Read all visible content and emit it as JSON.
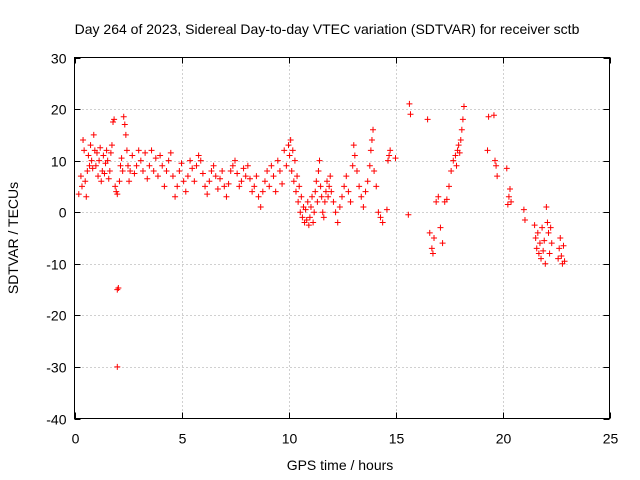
{
  "chart_data": {
    "type": "scatter",
    "title": "Day 264 of 2023, Sidereal Day-to-day VTEC variation (SDTVAR) for receiver sctb",
    "xlabel": "GPS time / hours",
    "ylabel": "SDTVAR / TECUs",
    "xlim": [
      0,
      25
    ],
    "ylim": [
      -40,
      30
    ],
    "xticks": [
      0,
      5,
      10,
      15,
      20,
      25
    ],
    "yticks": [
      -40,
      -30,
      -20,
      -10,
      0,
      10,
      20,
      30
    ],
    "xtick_labels": [
      "0",
      "5",
      "10",
      "15",
      "20",
      "25"
    ],
    "ytick_labels": [
      "-40",
      "-30",
      "-20",
      "-10",
      "0",
      "10",
      "20",
      "30"
    ],
    "grid": true,
    "marker": "plus",
    "color": "#ff0000",
    "series": [
      {
        "name": "sctb",
        "x": [
          0.2,
          0.3,
          0.35,
          0.4,
          0.45,
          0.5,
          0.55,
          0.6,
          0.65,
          0.7,
          0.75,
          0.8,
          0.85,
          0.9,
          0.95,
          1.0,
          1.05,
          1.1,
          1.15,
          1.2,
          1.25,
          1.3,
          1.35,
          1.4,
          1.45,
          1.5,
          1.55,
          1.6,
          1.65,
          1.7,
          1.75,
          1.8,
          1.85,
          1.9,
          1.95,
          2.0,
          2.0,
          2.05,
          2.0,
          2.1,
          2.15,
          2.2,
          2.25,
          2.3,
          2.35,
          2.4,
          2.45,
          2.5,
          2.55,
          2.6,
          2.7,
          2.8,
          2.9,
          3.0,
          3.1,
          3.2,
          3.3,
          3.4,
          3.5,
          3.6,
          3.7,
          3.8,
          3.9,
          4.0,
          4.1,
          4.2,
          4.3,
          4.4,
          4.5,
          4.6,
          4.7,
          4.8,
          4.9,
          5.0,
          5.1,
          5.2,
          5.3,
          5.4,
          5.5,
          5.6,
          5.7,
          5.8,
          5.9,
          6.0,
          6.1,
          6.2,
          6.3,
          6.4,
          6.5,
          6.6,
          6.7,
          6.8,
          6.9,
          7.0,
          7.1,
          7.2,
          7.3,
          7.4,
          7.5,
          7.6,
          7.7,
          7.8,
          7.9,
          8.0,
          8.1,
          8.2,
          8.3,
          8.4,
          8.5,
          8.6,
          8.7,
          8.8,
          8.9,
          9.0,
          9.1,
          9.2,
          9.3,
          9.4,
          9.5,
          9.6,
          9.7,
          9.8,
          9.9,
          10.0,
          10.05,
          10.1,
          10.15,
          10.2,
          10.25,
          10.3,
          10.35,
          10.4,
          10.45,
          10.5,
          10.55,
          10.6,
          10.65,
          10.7,
          10.75,
          10.8,
          10.85,
          10.9,
          10.95,
          11.0,
          11.05,
          11.1,
          11.15,
          11.2,
          11.25,
          11.3,
          11.35,
          11.4,
          11.45,
          11.5,
          11.55,
          11.6,
          11.65,
          11.7,
          11.75,
          11.8,
          11.85,
          11.9,
          11.95,
          12.0,
          12.1,
          12.2,
          12.3,
          12.4,
          12.5,
          12.6,
          12.7,
          12.8,
          12.9,
          13.0,
          13.05,
          13.1,
          13.2,
          13.3,
          13.4,
          13.5,
          13.6,
          13.7,
          13.8,
          13.85,
          13.9,
          13.95,
          14.0,
          14.1,
          14.2,
          14.3,
          14.4,
          14.6,
          14.65,
          14.7,
          14.75,
          15.0,
          15.6,
          15.65,
          15.7,
          16.5,
          16.6,
          16.7,
          16.75,
          16.8,
          16.9,
          17.0,
          17.1,
          17.2,
          17.3,
          17.4,
          17.5,
          17.6,
          17.7,
          17.8,
          17.85,
          17.9,
          17.95,
          18.0,
          18.05,
          18.1,
          18.15,
          18.2,
          19.3,
          19.35,
          19.6,
          19.65,
          19.7,
          19.75,
          20.2,
          20.25,
          20.3,
          20.35,
          20.4,
          21.0,
          21.05,
          21.5,
          21.55,
          21.6,
          21.65,
          21.7,
          21.75,
          21.8,
          21.85,
          21.9,
          21.95,
          22.0,
          22.05,
          22.1,
          22.15,
          22.2,
          22.25,
          22.3,
          22.6,
          22.65,
          22.7,
          22.75,
          22.8,
          22.85,
          22.9
        ],
        "y": [
          3.5,
          7.0,
          5.0,
          14.0,
          12.0,
          6.0,
          3.0,
          8.0,
          11.0,
          9.0,
          13.0,
          10.0,
          8.5,
          15.0,
          12.0,
          9.0,
          11.5,
          7.0,
          10.0,
          12.5,
          6.0,
          8.0,
          11.0,
          7.5,
          9.5,
          12.0,
          10.0,
          6.5,
          8.0,
          11.5,
          13.0,
          17.5,
          18.0,
          5.0,
          4.0,
          3.5,
          -15.0,
          -14.7,
          -30.0,
          6.0,
          9.0,
          10.5,
          8.0,
          18.5,
          17.0,
          15.0,
          12.0,
          9.0,
          6.0,
          8.0,
          11.0,
          7.5,
          9.0,
          12.0,
          10.0,
          8.0,
          11.5,
          6.5,
          9.0,
          12.0,
          8.0,
          10.5,
          7.0,
          11.0,
          9.0,
          5.0,
          8.0,
          10.0,
          11.5,
          7.0,
          3.0,
          5.0,
          8.0,
          9.5,
          6.0,
          4.0,
          7.0,
          10.0,
          8.5,
          6.0,
          9.0,
          11.0,
          10.0,
          7.5,
          5.0,
          3.5,
          6.0,
          8.0,
          9.0,
          7.0,
          4.5,
          6.5,
          8.0,
          5.0,
          3.0,
          5.5,
          8.0,
          9.0,
          10.0,
          7.5,
          5.0,
          6.0,
          8.5,
          7.0,
          9.0,
          6.5,
          4.0,
          5.0,
          7.0,
          3.0,
          1.0,
          4.0,
          6.0,
          8.0,
          5.0,
          9.0,
          7.0,
          4.0,
          10.0,
          8.0,
          5.5,
          12.0,
          9.0,
          13.0,
          11.0,
          14.0,
          8.0,
          12.0,
          6.0,
          10.0,
          4.0,
          7.0,
          2.0,
          5.0,
          0.0,
          3.0,
          -1.0,
          1.0,
          -2.0,
          0.5,
          -1.5,
          2.0,
          -2.5,
          -1.0,
          1.0,
          3.0,
          -2.0,
          0.0,
          4.0,
          6.0,
          2.0,
          8.0,
          10.0,
          5.0,
          3.0,
          0.0,
          -1.0,
          2.0,
          4.0,
          6.0,
          3.0,
          5.0,
          7.0,
          4.0,
          2.0,
          0.0,
          -2.0,
          1.0,
          3.0,
          5.0,
          7.0,
          4.0,
          2.0,
          9.0,
          13.0,
          11.0,
          8.0,
          5.0,
          3.0,
          1.0,
          4.0,
          6.0,
          9.0,
          12.0,
          14.0,
          16.0,
          8.0,
          5.0,
          0.0,
          -1.0,
          -2.0,
          0.5,
          10.0,
          11.0,
          12.0,
          10.5,
          -0.5,
          21.0,
          19.0,
          18.0,
          -4.0,
          -7.0,
          -8.0,
          -5.0,
          2.0,
          3.0,
          -3.0,
          -6.0,
          2.0,
          2.5,
          5.0,
          8.0,
          10.0,
          11.0,
          9.0,
          12.0,
          13.0,
          11.5,
          14.0,
          16.0,
          18.0,
          20.5,
          12.0,
          18.5,
          18.8,
          10.0,
          9.0,
          7.0,
          8.5,
          1.5,
          3.0,
          4.5,
          2.0,
          0.5,
          -1.5,
          -2.5,
          -5.0,
          -7.0,
          -4.0,
          -8.0,
          -6.0,
          -9.0,
          -3.0,
          -7.5,
          -5.5,
          -10.0,
          1.0,
          -2.0,
          -4.0,
          -8.0,
          -3.0,
          -6.0,
          -9.0,
          -7.0,
          -5.0,
          -8.5,
          -10.0,
          -6.5,
          -9.5
        ]
      }
    ]
  }
}
